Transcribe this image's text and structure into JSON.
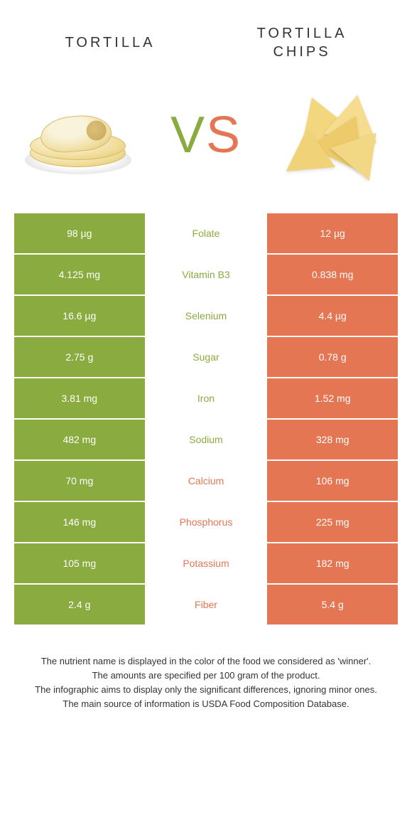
{
  "header": {
    "left_title": "TORTILLA",
    "right_title": "TORTILLA CHIPS",
    "vs_v": "V",
    "vs_s": "S"
  },
  "colors": {
    "left": "#8aab3f",
    "right": "#e57653",
    "nutrient_left_text": "#8aab3f",
    "nutrient_right_text": "#e57653",
    "row_border": "#ffffff",
    "background": "#ffffff"
  },
  "table": {
    "type": "comparison-table",
    "rows": [
      {
        "left": "98 µg",
        "nutrient": "Folate",
        "right": "12 µg",
        "winner": "left"
      },
      {
        "left": "4.125 mg",
        "nutrient": "Vitamin B3",
        "right": "0.838 mg",
        "winner": "left"
      },
      {
        "left": "16.6 µg",
        "nutrient": "Selenium",
        "right": "4.4 µg",
        "winner": "left"
      },
      {
        "left": "2.75 g",
        "nutrient": "Sugar",
        "right": "0.78 g",
        "winner": "left"
      },
      {
        "left": "3.81 mg",
        "nutrient": "Iron",
        "right": "1.52 mg",
        "winner": "left"
      },
      {
        "left": "482 mg",
        "nutrient": "Sodium",
        "right": "328 mg",
        "winner": "left"
      },
      {
        "left": "70 mg",
        "nutrient": "Calcium",
        "right": "106 mg",
        "winner": "right"
      },
      {
        "left": "146 mg",
        "nutrient": "Phosphorus",
        "right": "225 mg",
        "winner": "right"
      },
      {
        "left": "105 mg",
        "nutrient": "Potassium",
        "right": "182 mg",
        "winner": "right"
      },
      {
        "left": "2.4 g",
        "nutrient": "Fiber",
        "right": "5.4 g",
        "winner": "right"
      }
    ]
  },
  "footer": {
    "line1": "The nutrient name is displayed in the color of the food we considered as 'winner'.",
    "line2": "The amounts are specified per 100 gram of the product.",
    "line3": "The infographic aims to display only the significant differences, ignoring minor ones.",
    "line4": "The main source of information is USDA Food Composition Database."
  }
}
